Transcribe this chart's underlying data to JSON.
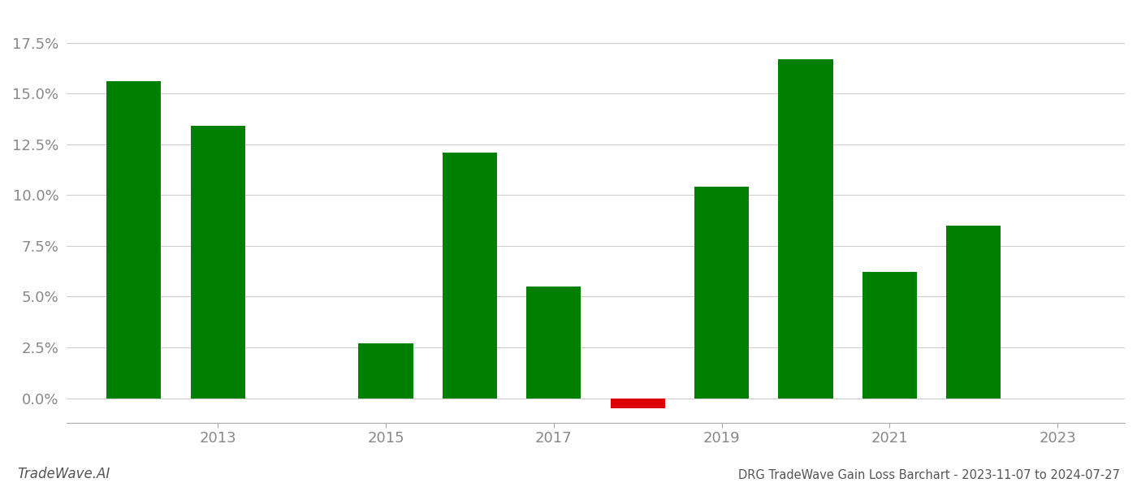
{
  "years": [
    2012,
    2013,
    2015,
    2016,
    2017,
    2018,
    2019,
    2020,
    2021,
    2022
  ],
  "values": [
    0.156,
    0.134,
    0.027,
    0.121,
    0.055,
    -0.005,
    0.104,
    0.167,
    0.062,
    0.085
  ],
  "colors": [
    "#008000",
    "#008000",
    "#008000",
    "#008000",
    "#008000",
    "#dd0000",
    "#008000",
    "#008000",
    "#008000",
    "#008000"
  ],
  "title": "DRG TradeWave Gain Loss Barchart - 2023-11-07 to 2024-07-27",
  "watermark": "TradeWave.AI",
  "xlim": [
    2011.2,
    2023.8
  ],
  "ylim": [
    -0.012,
    0.19
  ],
  "xticks": [
    2013,
    2015,
    2017,
    2019,
    2021,
    2023
  ],
  "yticks": [
    0.0,
    0.025,
    0.05,
    0.075,
    0.1,
    0.125,
    0.15,
    0.175
  ],
  "bar_width": 0.65,
  "background_color": "#ffffff",
  "grid_color": "#cccccc",
  "axis_label_color": "#888888",
  "title_color": "#555555",
  "watermark_color": "#555555",
  "spine_color": "#aaaaaa"
}
